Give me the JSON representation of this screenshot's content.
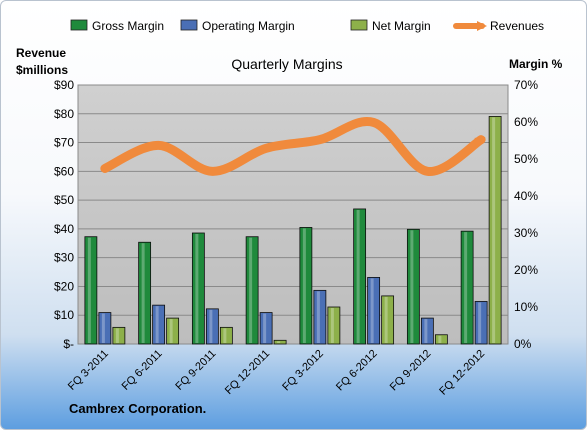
{
  "company": "Cambrex Corporation.",
  "chart_data": {
    "type": "bar",
    "title": "Quarterly Margins",
    "left_axis_label": [
      "Revenue",
      "$millions"
    ],
    "right_axis_label": "Margin %",
    "categories": [
      "FQ 3-2011",
      "FQ 6-2011",
      "FQ 9-2011",
      "FQ 12-2011",
      "FQ 3-2012",
      "FQ 6-2012",
      "FQ 9-2012",
      "FQ 12-2012"
    ],
    "series": [
      {
        "name": "Gross Margin",
        "axis": "right",
        "type": "bar",
        "color": "#1f8a3c",
        "values": [
          29,
          27.5,
          30,
          29,
          31.5,
          36.5,
          31,
          30.5
        ]
      },
      {
        "name": "Operating Margin",
        "axis": "right",
        "type": "bar",
        "color": "#4a6fb5",
        "values": [
          8.5,
          10.5,
          9.5,
          8.5,
          14.5,
          18,
          7,
          11.5
        ]
      },
      {
        "name": "Net Margin",
        "axis": "right",
        "type": "bar",
        "color": "#8db04a",
        "values": [
          4.5,
          7,
          4.5,
          1,
          10,
          13,
          2.5,
          61.5
        ]
      },
      {
        "name": "Revenues",
        "axis": "left",
        "type": "line",
        "color": "#f08a3c",
        "values": [
          61,
          69,
          60,
          68,
          71,
          77,
          60,
          71
        ]
      }
    ],
    "left_ylim": [
      0,
      90
    ],
    "left_ticks": [
      "$-",
      "$10",
      "$20",
      "$30",
      "$40",
      "$50",
      "$60",
      "$70",
      "$80",
      "$90"
    ],
    "right_ylim": [
      0,
      70
    ],
    "right_ticks": [
      "0%",
      "10%",
      "20%",
      "30%",
      "40%",
      "50%",
      "60%",
      "70%"
    ],
    "legend_position": "top",
    "grid": true
  }
}
